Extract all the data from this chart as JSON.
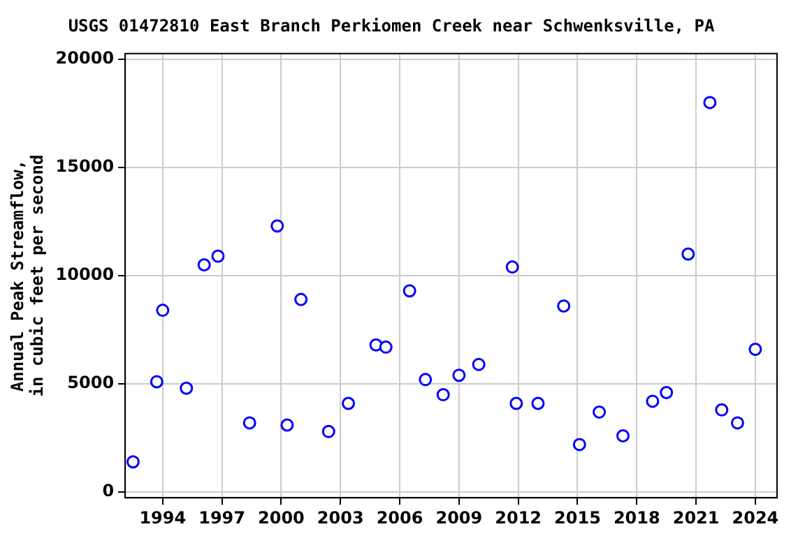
{
  "chart_data": {
    "type": "scatter",
    "title": "USGS 01472810 East Branch Perkiomen Creek near Schwenksville, PA",
    "ylabel": "Annual Peak Streamflow, in cubic feet per second",
    "x": [
      1992.5,
      1993.7,
      1994.0,
      1995.2,
      1996.1,
      1996.8,
      1998.4,
      1999.8,
      2000.3,
      2001.0,
      2002.4,
      2003.4,
      2004.8,
      2005.3,
      2006.5,
      2007.3,
      2008.2,
      2009.0,
      2010.0,
      2011.7,
      2011.9,
      2013.0,
      2014.3,
      2015.1,
      2016.1,
      2017.3,
      2018.8,
      2019.5,
      2020.6,
      2021.7,
      2022.3,
      2023.1,
      2024.0
    ],
    "values": [
      1400,
      5100,
      8400,
      4800,
      10500,
      10900,
      3200,
      12300,
      3100,
      8900,
      2800,
      4100,
      6800,
      6700,
      9300,
      5200,
      4500,
      5400,
      5900,
      10400,
      4100,
      4100,
      8600,
      2200,
      3700,
      2600,
      4200,
      4600,
      11000,
      18000,
      3800,
      3200,
      6600
    ],
    "color": "#0000ff",
    "marker": "circle",
    "grid": true,
    "legend": false,
    "xlim": [
      1992.1,
      2025.1
    ],
    "xticks": [
      1994,
      1997,
      2000,
      2003,
      2006,
      2009,
      2012,
      2015,
      2018,
      2021,
      2024
    ],
    "ylim": [
      -260,
      20260
    ],
    "yticks": [
      0,
      5000,
      10000,
      15000,
      20000
    ]
  }
}
